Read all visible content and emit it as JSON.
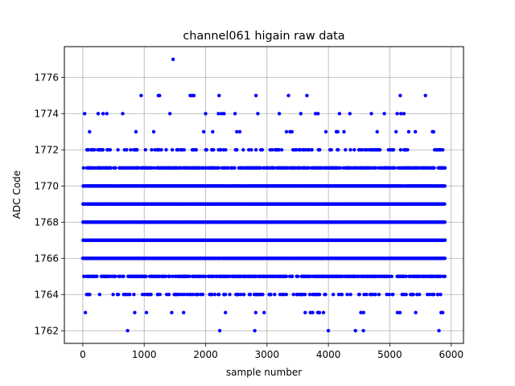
{
  "chart_data": {
    "type": "scatter",
    "title": "channel061 higain raw data",
    "xlabel": "sample number",
    "ylabel": "ADC Code",
    "xlim": [
      -300,
      6200
    ],
    "ylim": [
      1761.3,
      1777.7
    ],
    "xticks": [
      0,
      1000,
      2000,
      3000,
      4000,
      5000,
      6000
    ],
    "yticks": [
      1762,
      1764,
      1766,
      1768,
      1770,
      1772,
      1774,
      1776
    ],
    "grid": true,
    "series": [
      {
        "color": "#0000ff",
        "n_samples": 5900,
        "density_by_level": {
          "1767": 1.0,
          "1768": 1.0,
          "1769": 1.0,
          "1766": 0.97,
          "1770": 0.97,
          "1765": 0.55,
          "1771": 0.55,
          "1764": 0.22,
          "1772": 0.2,
          "1763": 0.05,
          "1773": 0.05
        },
        "points": [
          [
            730,
            1762
          ],
          [
            2230,
            1762
          ],
          [
            2800,
            1762
          ],
          [
            4000,
            1762
          ],
          [
            4440,
            1762
          ],
          [
            4570,
            1762
          ],
          [
            5800,
            1762
          ],
          [
            1470,
            1777
          ],
          [
            950,
            1775
          ],
          [
            1230,
            1775
          ],
          [
            1250,
            1775
          ],
          [
            1750,
            1775
          ],
          [
            1780,
            1775
          ],
          [
            1810,
            1775
          ],
          [
            2220,
            1775
          ],
          [
            2820,
            1775
          ],
          [
            3350,
            1775
          ],
          [
            3650,
            1775
          ],
          [
            5170,
            1775
          ],
          [
            5580,
            1775
          ],
          [
            30,
            1774
          ],
          [
            250,
            1774
          ],
          [
            330,
            1774
          ],
          [
            390,
            1774
          ],
          [
            650,
            1774
          ],
          [
            1420,
            1774
          ],
          [
            2000,
            1774
          ],
          [
            2210,
            1774
          ],
          [
            2260,
            1774
          ],
          [
            2300,
            1774
          ],
          [
            2480,
            1774
          ],
          [
            2850,
            1774
          ],
          [
            3200,
            1774
          ],
          [
            3550,
            1774
          ],
          [
            3790,
            1774
          ],
          [
            3830,
            1774
          ],
          [
            4180,
            1774
          ],
          [
            4350,
            1774
          ],
          [
            4700,
            1774
          ],
          [
            4910,
            1774
          ],
          [
            5120,
            1774
          ],
          [
            5180,
            1774
          ],
          [
            5230,
            1774
          ]
        ]
      }
    ]
  }
}
